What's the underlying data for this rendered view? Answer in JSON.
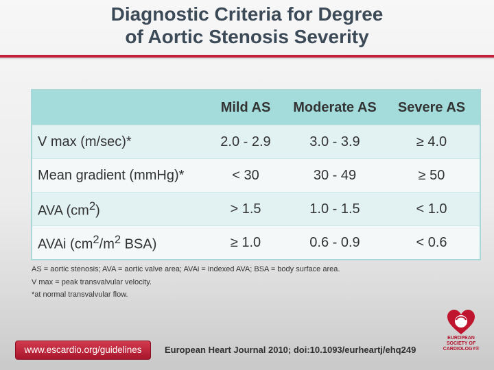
{
  "title": {
    "line1": "Diagnostic Criteria for Degree",
    "line2": "of Aortic Stenosis Severity"
  },
  "table": {
    "headers": [
      "",
      "Mild AS",
      "Moderate AS",
      "Severe AS"
    ],
    "rows": [
      {
        "label": "V max (m/sec)*",
        "mild": "2.0 - 2.9",
        "moderate": "3.0 - 3.9",
        "severe": "≥ 4.0"
      },
      {
        "label": "Mean gradient (mmHg)*",
        "mild": "< 30",
        "moderate": "30 - 49",
        "severe": "≥ 50"
      },
      {
        "label_pre": "AVA (cm",
        "label_sup": "2",
        "label_post": ")",
        "mild": "> 1.5",
        "moderate": "1.0 - 1.5",
        "severe": "< 1.0"
      },
      {
        "label_pre": "AVAi (cm",
        "label_sup": "2",
        "label_mid": "/m",
        "label_sup2": "2",
        "label_post": " BSA)",
        "mild": "≥ 1.0",
        "moderate": "0.6 - 0.9",
        "severe": "< 0.6"
      }
    ]
  },
  "footnotes": [
    "AS = aortic stenosis; AVA = aortic valve area; AVAi = indexed AVA; BSA = body surface area.",
    "V max = peak transvalvular velocity.",
    "*at normal transvalvular flow."
  ],
  "footer": {
    "url": "www.escardio.org/guidelines",
    "journal_ref": "European Heart Journal 2010; doi:10.1093/eurheartj/ehq249"
  },
  "logo": {
    "line1": "EUROPEAN",
    "line2": "SOCIETY OF",
    "line3": "CARDIOLOGY®"
  },
  "colors": {
    "accent_red": "#c21f3a",
    "header_teal": "#a4dcdc",
    "title_text": "#3c4a57"
  }
}
